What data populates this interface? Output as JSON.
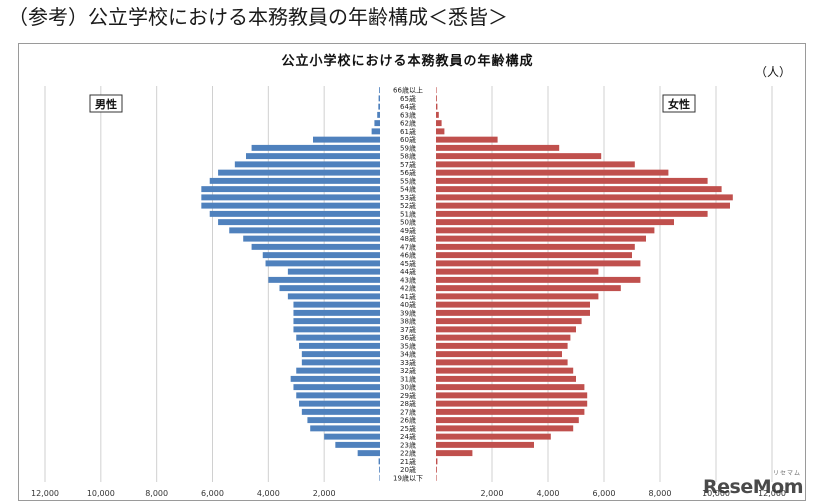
{
  "heading": "（参考）公立学校における本務教員の年齢構成＜悉皆＞",
  "watermark": {
    "text": "ReseMom",
    "sub": "リセマム"
  },
  "chart_data": {
    "type": "bar",
    "orientation": "horizontal-population-pyramid",
    "title": "公立小学校における本務教員の年齢構成",
    "unit_label": "（人）",
    "legend": {
      "left": "男性",
      "right": "女性"
    },
    "categories": [
      "66歳以上",
      "65歳",
      "64歳",
      "63歳",
      "62歳",
      "61歳",
      "60歳",
      "59歳",
      "58歳",
      "57歳",
      "56歳",
      "55歳",
      "54歳",
      "53歳",
      "52歳",
      "51歳",
      "50歳",
      "49歳",
      "48歳",
      "47歳",
      "46歳",
      "45歳",
      "44歳",
      "43歳",
      "42歳",
      "41歳",
      "40歳",
      "39歳",
      "38歳",
      "37歳",
      "36歳",
      "35歳",
      "34歳",
      "33歳",
      "32歳",
      "31歳",
      "30歳",
      "29歳",
      "28歳",
      "27歳",
      "26歳",
      "25歳",
      "24歳",
      "23歳",
      "22歳",
      "21歳",
      "20歳",
      "19歳以下"
    ],
    "series": [
      {
        "name": "男性",
        "color": "#4f81bd",
        "values": [
          30,
          50,
          60,
          100,
          200,
          300,
          2400,
          4600,
          4800,
          5200,
          5800,
          6100,
          6400,
          6400,
          6400,
          6100,
          5800,
          5400,
          4900,
          4600,
          4200,
          4100,
          3300,
          4000,
          3600,
          3300,
          3100,
          3100,
          3100,
          3100,
          3000,
          2900,
          2800,
          2800,
          3000,
          3200,
          3100,
          3000,
          2900,
          2800,
          2600,
          2500,
          2000,
          1600,
          800,
          50,
          30,
          20
        ]
      },
      {
        "name": "女性",
        "color": "#c0504d",
        "values": [
          20,
          30,
          50,
          100,
          200,
          300,
          2200,
          4400,
          5900,
          7100,
          8300,
          9700,
          10200,
          10600,
          10500,
          9700,
          8500,
          7800,
          7500,
          7100,
          7000,
          7300,
          5800,
          7300,
          6600,
          5800,
          5500,
          5500,
          5200,
          5000,
          4800,
          4700,
          4500,
          4700,
          4900,
          5000,
          5300,
          5400,
          5400,
          5300,
          5100,
          4900,
          4100,
          3500,
          1300,
          50,
          30,
          20
        ]
      }
    ],
    "xaxis": {
      "left_ticks": [
        "12,000",
        "10,000",
        "8,000",
        "6,000",
        "4,000",
        "2,000"
      ],
      "right_ticks": [
        "2,000",
        "4,000",
        "6,000",
        "8,000",
        "10,000",
        "12,000"
      ],
      "range": [
        0,
        12000
      ]
    },
    "grid": "vertical"
  }
}
